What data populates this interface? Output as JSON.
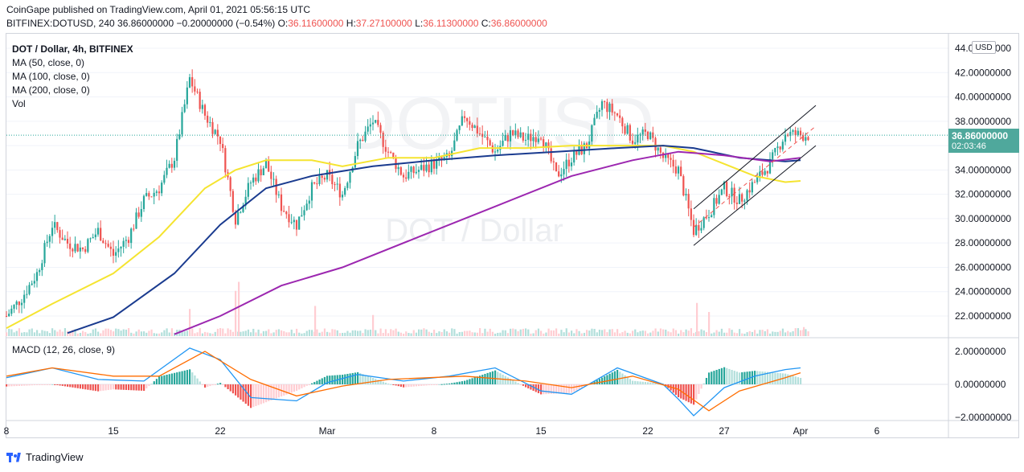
{
  "header": {
    "published_line": "CoinGape published on TradingView.com, April 01, 2021 05:56:15 UTC",
    "symbol": "BITFINEX:DOTUSD, 240",
    "price": "36.86000000",
    "change": "−0.20000000 (−0.54%)",
    "open_label": "O:",
    "open": "36.11600000",
    "high_label": "H:",
    "high": "37.27100000",
    "low_label": "L:",
    "low": "36.11300000",
    "close_label": "C:",
    "close": "36.86000000"
  },
  "legend": {
    "title": "DOT / Dollar, 4h, BITFINEX",
    "ma50": "MA (50, close, 0)",
    "ma100": "MA (100, close, 0)",
    "ma200": "MA (200, close, 0)",
    "vol": "Vol",
    "macd": "MACD (12, 26, close, 9)"
  },
  "price_axis": {
    "unit_button": "USD",
    "current_price": "36.86000000",
    "countdown": "02:03:46"
  },
  "watermark": {
    "symbol": "DOTUSD",
    "description": "DOT / Dollar"
  },
  "footer": {
    "brand": "TradingView"
  },
  "colors": {
    "up": "#26a69a",
    "down": "#ef5350",
    "ma50": "#f5e430",
    "ma100": "#1a3b8f",
    "ma200": "#9c27b0",
    "macd_line": "#2196f3",
    "signal_line": "#ff6d00",
    "price_tag": "#4fa89c",
    "channel": "#131722"
  },
  "icons": {
    "logo": "tradingview-logo-icon"
  },
  "chart_data": [
    {
      "type": "candlestick",
      "title": "DOT / Dollar, 4h, BITFINEX",
      "x_tick_labels": [
        "8",
        "15",
        "22",
        "Mar",
        "8",
        "15",
        "22",
        "27",
        "Apr",
        "6"
      ],
      "x_dates": [
        "2021-02-08",
        "2021-02-15",
        "2021-02-22",
        "2021-03-01",
        "2021-03-08",
        "2021-03-15",
        "2021-03-22",
        "2021-03-27",
        "2021-04-01",
        "2021-04-06"
      ],
      "ylim": [
        20.5,
        44.6
      ],
      "y_ticks": [
        "22.00000000",
        "24.00000000",
        "26.00000000",
        "28.00000000",
        "30.00000000",
        "32.00000000",
        "34.00000000",
        "36.00000000",
        "38.00000000",
        "40.00000000",
        "42.00000000",
        "44.00000000"
      ],
      "price_path": [
        [
          "2021-02-08",
          22.0
        ],
        [
          "2021-02-09",
          23.5
        ],
        [
          "2021-02-10",
          25.5
        ],
        [
          "2021-02-11",
          29.5
        ],
        [
          "2021-02-12",
          28.0
        ],
        [
          "2021-02-13",
          27.5
        ],
        [
          "2021-02-14",
          29.0
        ],
        [
          "2021-02-15",
          27.0
        ],
        [
          "2021-02-16",
          28.5
        ],
        [
          "2021-02-17",
          31.5
        ],
        [
          "2021-02-18",
          32.5
        ],
        [
          "2021-02-19",
          35.0
        ],
        [
          "2021-02-20",
          41.5
        ],
        [
          "2021-02-21",
          38.5
        ],
        [
          "2021-02-22",
          36.5
        ],
        [
          "2021-02-23",
          30.0
        ],
        [
          "2021-02-24",
          33.0
        ],
        [
          "2021-02-25",
          34.5
        ],
        [
          "2021-02-26",
          31.0
        ],
        [
          "2021-02-27",
          29.5
        ],
        [
          "2021-02-28",
          32.5
        ],
        [
          "2021-03-01",
          33.5
        ],
        [
          "2021-03-02",
          32.0
        ],
        [
          "2021-03-03",
          36.0
        ],
        [
          "2021-03-04",
          38.0
        ],
        [
          "2021-03-05",
          35.5
        ],
        [
          "2021-03-06",
          33.5
        ],
        [
          "2021-03-07",
          34.0
        ],
        [
          "2021-03-08",
          34.5
        ],
        [
          "2021-03-09",
          35.0
        ],
        [
          "2021-03-10",
          38.5
        ],
        [
          "2021-03-11",
          37.0
        ],
        [
          "2021-03-12",
          35.5
        ],
        [
          "2021-03-13",
          37.0
        ],
        [
          "2021-03-14",
          36.5
        ],
        [
          "2021-03-15",
          37.0
        ],
        [
          "2021-03-16",
          33.5
        ],
        [
          "2021-03-17",
          35.0
        ],
        [
          "2021-03-18",
          36.0
        ],
        [
          "2021-03-19",
          39.5
        ],
        [
          "2021-03-20",
          38.5
        ],
        [
          "2021-03-21",
          36.5
        ],
        [
          "2021-03-22",
          37.0
        ],
        [
          "2021-03-23",
          35.0
        ],
        [
          "2021-03-24",
          34.0
        ],
        [
          "2021-03-25",
          29.0
        ],
        [
          "2021-03-26",
          30.5
        ],
        [
          "2021-03-27",
          32.5
        ],
        [
          "2021-03-28",
          31.5
        ],
        [
          "2021-03-29",
          33.0
        ],
        [
          "2021-03-30",
          34.5
        ],
        [
          "2021-03-31",
          37.0
        ],
        [
          "2021-04-01",
          36.86
        ]
      ],
      "moving_averages": [
        {
          "name": "MA (50, close, 0)",
          "color": "#f5e430",
          "points": [
            [
              "2021-02-08",
              21.0
            ],
            [
              "2021-02-11",
              23.0
            ],
            [
              "2021-02-15",
              25.5
            ],
            [
              "2021-02-18",
              28.5
            ],
            [
              "2021-02-21",
              32.5
            ],
            [
              "2021-02-23",
              34.0
            ],
            [
              "2021-02-25",
              34.8
            ],
            [
              "2021-02-28",
              34.8
            ],
            [
              "2021-03-02",
              34.3
            ],
            [
              "2021-03-05",
              35.0
            ],
            [
              "2021-03-08",
              35.0
            ],
            [
              "2021-03-11",
              35.8
            ],
            [
              "2021-03-14",
              35.8
            ],
            [
              "2021-03-17",
              36.0
            ],
            [
              "2021-03-20",
              36.0
            ],
            [
              "2021-03-23",
              36.0
            ],
            [
              "2021-03-25",
              35.5
            ],
            [
              "2021-03-27",
              34.5
            ],
            [
              "2021-03-29",
              33.5
            ],
            [
              "2021-03-31",
              33.0
            ],
            [
              "2021-04-01",
              33.1
            ]
          ]
        },
        {
          "name": "MA (100, close, 0)",
          "color": "#1a3b8f",
          "points": [
            [
              "2021-02-12",
              20.6
            ],
            [
              "2021-02-15",
              21.9
            ],
            [
              "2021-02-19",
              25.5
            ],
            [
              "2021-02-22",
              29.5
            ],
            [
              "2021-02-25",
              32.5
            ],
            [
              "2021-02-28",
              33.5
            ],
            [
              "2021-03-04",
              34.3
            ],
            [
              "2021-03-08",
              34.8
            ],
            [
              "2021-03-12",
              35.2
            ],
            [
              "2021-03-16",
              35.5
            ],
            [
              "2021-03-20",
              35.8
            ],
            [
              "2021-03-23",
              36.0
            ],
            [
              "2021-03-25",
              35.8
            ],
            [
              "2021-03-28",
              35.0
            ],
            [
              "2021-03-31",
              34.7
            ],
            [
              "2021-04-01",
              34.8
            ]
          ]
        },
        {
          "name": "MA (200, close, 0)",
          "color": "#9c27b0",
          "points": [
            [
              "2021-02-19",
              20.5
            ],
            [
              "2021-02-22",
              22.0
            ],
            [
              "2021-02-26",
              24.5
            ],
            [
              "2021-03-02",
              26.0
            ],
            [
              "2021-03-07",
              28.5
            ],
            [
              "2021-03-12",
              31.0
            ],
            [
              "2021-03-17",
              33.5
            ],
            [
              "2021-03-21",
              34.8
            ],
            [
              "2021-03-24",
              35.5
            ],
            [
              "2021-03-27",
              35.2
            ],
            [
              "2021-03-30",
              34.7
            ],
            [
              "2021-04-01",
              35.0
            ]
          ]
        }
      ],
      "channel": {
        "upper": [
          [
            "2021-03-25",
            30.8
          ],
          [
            "2021-04-02",
            39.3
          ]
        ],
        "lower": [
          [
            "2021-03-25",
            27.8
          ],
          [
            "2021-04-02",
            36.0
          ]
        ],
        "mid_dashed": [
          [
            "2021-03-25",
            29.3
          ],
          [
            "2021-04-02",
            37.6
          ]
        ]
      },
      "volume_spikes": [
        [
          "2021-02-20",
          0.45
        ],
        [
          "2021-02-23",
          0.9
        ],
        [
          "2021-02-23",
          0.75
        ],
        [
          "2021-02-28",
          0.5
        ],
        [
          "2021-03-04",
          0.35
        ],
        [
          "2021-03-25",
          0.55
        ],
        [
          "2021-03-26",
          0.4
        ],
        [
          "2021-04-01",
          0.15
        ]
      ]
    },
    {
      "type": "line",
      "title": "MACD (12, 26, close, 9)",
      "ylim": [
        -2.5,
        2.6
      ],
      "y_ticks": [
        "−2.00000000",
        "0.00000000",
        "2.00000000"
      ],
      "series": [
        {
          "name": "MACD",
          "color": "#2196f3",
          "points": [
            [
              "2021-02-08",
              0.4
            ],
            [
              "2021-02-11",
              1.0
            ],
            [
              "2021-02-14",
              0.3
            ],
            [
              "2021-02-17",
              0.2
            ],
            [
              "2021-02-20",
              2.2
            ],
            [
              "2021-02-22",
              1.5
            ],
            [
              "2021-02-24",
              -0.8
            ],
            [
              "2021-02-27",
              -1.0
            ],
            [
              "2021-03-01",
              0.1
            ],
            [
              "2021-03-03",
              0.6
            ],
            [
              "2021-03-06",
              0.2
            ],
            [
              "2021-03-09",
              0.5
            ],
            [
              "2021-03-12",
              1.0
            ],
            [
              "2021-03-15",
              -0.4
            ],
            [
              "2021-03-17",
              -0.6
            ],
            [
              "2021-03-20",
              1.0
            ],
            [
              "2021-03-23",
              0.0
            ],
            [
              "2021-03-24",
              -0.9
            ],
            [
              "2021-03-25",
              -1.9
            ],
            [
              "2021-03-27",
              -0.2
            ],
            [
              "2021-03-29",
              0.5
            ],
            [
              "2021-03-31",
              0.9
            ],
            [
              "2021-04-01",
              1.0
            ]
          ]
        },
        {
          "name": "Signal",
          "color": "#ff6d00",
          "points": [
            [
              "2021-02-08",
              0.5
            ],
            [
              "2021-02-11",
              1.0
            ],
            [
              "2021-02-15",
              0.5
            ],
            [
              "2021-02-18",
              0.5
            ],
            [
              "2021-02-21",
              2.0
            ],
            [
              "2021-02-24",
              0.3
            ],
            [
              "2021-02-27",
              -0.7
            ],
            [
              "2021-03-02",
              -0.1
            ],
            [
              "2021-03-05",
              0.3
            ],
            [
              "2021-03-10",
              0.5
            ],
            [
              "2021-03-14",
              0.2
            ],
            [
              "2021-03-17",
              -0.2
            ],
            [
              "2021-03-21",
              0.5
            ],
            [
              "2021-03-24",
              -0.3
            ],
            [
              "2021-03-26",
              -1.6
            ],
            [
              "2021-03-28",
              -0.4
            ],
            [
              "2021-03-31",
              0.4
            ],
            [
              "2021-04-01",
              0.7
            ]
          ]
        }
      ]
    }
  ]
}
